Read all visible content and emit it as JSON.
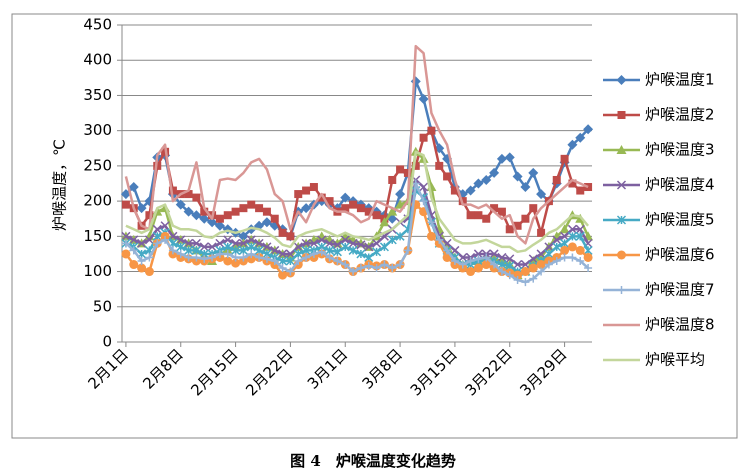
{
  "chart_data": {
    "type": "line",
    "caption": "图 4　炉喉温度变化趋势",
    "y_label": "炉喉温度，℃",
    "ylim": [
      0,
      450
    ],
    "yticks": [
      0,
      50,
      100,
      150,
      200,
      250,
      300,
      350,
      400,
      450
    ],
    "grid": true,
    "legend": "right",
    "categories": [
      "2月1日",
      null,
      null,
      null,
      null,
      null,
      null,
      "2月8日",
      null,
      null,
      null,
      null,
      null,
      null,
      "2月15日",
      null,
      null,
      null,
      null,
      null,
      null,
      "2月22日",
      null,
      null,
      null,
      null,
      null,
      null,
      "3月1日",
      null,
      null,
      null,
      null,
      null,
      null,
      "3月8日",
      null,
      null,
      null,
      null,
      null,
      null,
      "3月15日",
      null,
      null,
      null,
      null,
      null,
      null,
      "3月22日",
      null,
      null,
      null,
      null,
      null,
      null,
      "3月29日",
      null,
      null,
      null
    ],
    "series": [
      {
        "name": "炉喉温度1",
        "color": "#4a7ebb",
        "marker": "diamond",
        "values": [
          210,
          220,
          190,
          200,
          262,
          265,
          210,
          195,
          185,
          180,
          175,
          170,
          165,
          160,
          155,
          150,
          160,
          165,
          170,
          165,
          160,
          150,
          185,
          190,
          195,
          200,
          195,
          190,
          205,
          200,
          195,
          190,
          185,
          180,
          175,
          210,
          240,
          370,
          345,
          300,
          275,
          260,
          220,
          210,
          215,
          225,
          230,
          240,
          260,
          262,
          235,
          220,
          240,
          210,
          200,
          225,
          255,
          280,
          290,
          302
        ]
      },
      {
        "name": "炉喉温度2",
        "color": "#be4b48",
        "marker": "square",
        "values": [
          195,
          190,
          165,
          180,
          250,
          270,
          215,
          210,
          210,
          205,
          185,
          180,
          175,
          180,
          185,
          190,
          195,
          190,
          185,
          175,
          155,
          150,
          210,
          215,
          220,
          205,
          200,
          185,
          190,
          195,
          190,
          185,
          180,
          175,
          230,
          245,
          240,
          250,
          290,
          300,
          250,
          235,
          215,
          200,
          180,
          180,
          175,
          190,
          185,
          160,
          165,
          175,
          190,
          155,
          200,
          230,
          260,
          225,
          215,
          220
        ]
      },
      {
        "name": "炉喉温度3",
        "color": "#98b954",
        "marker": "triangle",
        "values": [
          150,
          145,
          140,
          150,
          185,
          190,
          150,
          145,
          140,
          130,
          120,
          115,
          125,
          130,
          135,
          140,
          145,
          140,
          135,
          130,
          125,
          120,
          135,
          140,
          145,
          150,
          145,
          140,
          150,
          145,
          140,
          135,
          150,
          170,
          185,
          195,
          200,
          270,
          260,
          220,
          160,
          135,
          120,
          110,
          115,
          115,
          120,
          118,
          115,
          110,
          95,
          100,
          115,
          120,
          135,
          150,
          160,
          180,
          175,
          150
        ]
      },
      {
        "name": "炉喉温度4",
        "color": "#7d60a0",
        "marker": "x",
        "values": [
          150,
          145,
          140,
          145,
          160,
          165,
          150,
          145,
          140,
          140,
          135,
          135,
          140,
          145,
          140,
          140,
          145,
          140,
          135,
          130,
          125,
          125,
          135,
          140,
          140,
          145,
          140,
          138,
          145,
          140,
          138,
          135,
          140,
          150,
          160,
          170,
          175,
          230,
          220,
          180,
          150,
          140,
          130,
          120,
          120,
          125,
          125,
          125,
          120,
          118,
          110,
          110,
          118,
          125,
          135,
          145,
          150,
          160,
          160,
          140
        ]
      },
      {
        "name": "炉喉温度5",
        "color": "#46aac5",
        "marker": "star",
        "values": [
          140,
          135,
          125,
          130,
          150,
          155,
          140,
          135,
          130,
          130,
          125,
          125,
          130,
          135,
          130,
          130,
          135,
          130,
          125,
          120,
          115,
          115,
          125,
          130,
          130,
          135,
          130,
          128,
          135,
          130,
          125,
          120,
          128,
          135,
          145,
          150,
          160,
          215,
          205,
          170,
          140,
          130,
          120,
          110,
          110,
          115,
          115,
          115,
          110,
          108,
          100,
          100,
          108,
          115,
          125,
          135,
          140,
          150,
          150,
          130
        ]
      },
      {
        "name": "炉喉温度6",
        "color": "#f79646",
        "marker": "circle",
        "values": [
          125,
          110,
          105,
          100,
          140,
          150,
          125,
          120,
          118,
          115,
          115,
          118,
          120,
          115,
          112,
          115,
          118,
          120,
          115,
          110,
          95,
          98,
          110,
          120,
          120,
          125,
          118,
          115,
          110,
          100,
          105,
          110,
          108,
          110,
          105,
          110,
          130,
          195,
          185,
          150,
          140,
          120,
          110,
          105,
          100,
          105,
          110,
          105,
          100,
          98,
          95,
          100,
          105,
          110,
          115,
          120,
          130,
          135,
          130,
          120
        ]
      },
      {
        "name": "炉喉温度7",
        "color": "#95b3d7",
        "marker": "plus",
        "values": [
          140,
          130,
          115,
          120,
          140,
          145,
          130,
          125,
          120,
          120,
          118,
          120,
          125,
          125,
          120,
          120,
          125,
          120,
          118,
          115,
          105,
          100,
          115,
          120,
          125,
          128,
          120,
          115,
          110,
          100,
          105,
          108,
          105,
          110,
          105,
          110,
          130,
          225,
          200,
          170,
          145,
          130,
          115,
          110,
          115,
          118,
          120,
          110,
          100,
          95,
          88,
          85,
          90,
          100,
          110,
          115,
          120,
          120,
          115,
          105
        ]
      },
      {
        "name": "炉喉温度8",
        "color": "#d99795",
        "marker": "none",
        "values": [
          235,
          190,
          165,
          160,
          265,
          280,
          200,
          210,
          215,
          255,
          190,
          175,
          230,
          232,
          230,
          240,
          255,
          260,
          245,
          210,
          200,
          160,
          185,
          170,
          195,
          210,
          190,
          185,
          185,
          180,
          170,
          175,
          200,
          195,
          190,
          185,
          200,
          420,
          410,
          325,
          300,
          280,
          230,
          195,
          195,
          190,
          195,
          185,
          175,
          180,
          150,
          140,
          175,
          190,
          200,
          210,
          220,
          230,
          225,
          220
        ]
      },
      {
        "name": "炉喉平均",
        "color": "#c3d69b",
        "marker": "none",
        "values": [
          165,
          160,
          155,
          160,
          190,
          195,
          165,
          160,
          160,
          158,
          150,
          148,
          155,
          158,
          155,
          158,
          162,
          160,
          155,
          148,
          138,
          135,
          150,
          155,
          158,
          160,
          155,
          150,
          155,
          150,
          148,
          145,
          150,
          155,
          160,
          170,
          180,
          270,
          265,
          205,
          175,
          160,
          145,
          140,
          140,
          142,
          145,
          140,
          135,
          135,
          128,
          130,
          138,
          145,
          155,
          160,
          170,
          180,
          178,
          165
        ]
      }
    ]
  }
}
